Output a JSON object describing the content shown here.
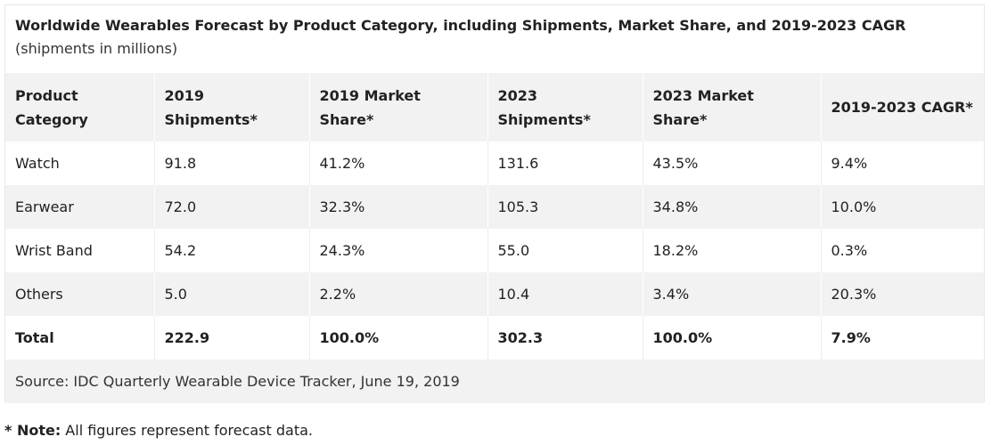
{
  "chart_data": {
    "type": "table",
    "title": "Worldwide Wearables Forecast by Product Category, including Shipments, Market Share, and 2019-2023 CAGR",
    "subtitle": "(shipments in millions)",
    "columns": [
      "Product Category",
      "2019 Shipments*",
      "2019 Market Share*",
      "2023 Shipments*",
      "2023 Market Share*",
      "2019-2023 CAGR*"
    ],
    "rows": [
      [
        "Watch",
        "91.8",
        "41.2%",
        "131.6",
        "43.5%",
        "9.4%"
      ],
      [
        "Earwear",
        "72.0",
        "32.3%",
        "105.3",
        "34.8%",
        "10.0%"
      ],
      [
        "Wrist Band",
        "54.2",
        "24.3%",
        "55.0",
        "18.2%",
        "0.3%"
      ],
      [
        "Others",
        "5.0",
        "2.2%",
        "10.4",
        "3.4%",
        "20.3%"
      ]
    ],
    "total_row": [
      "Total",
      "222.9",
      "100.0%",
      "302.3",
      "100.0%",
      "7.9%"
    ],
    "source": "Source: IDC Quarterly Wearable Device Tracker, June 19, 2019"
  },
  "note": {
    "label": "* Note:",
    "text": " All figures represent forecast data."
  },
  "colors": {
    "header_bg": "#f2f2f2",
    "stripe_bg": "#f2f2f2",
    "text": "#222222"
  }
}
